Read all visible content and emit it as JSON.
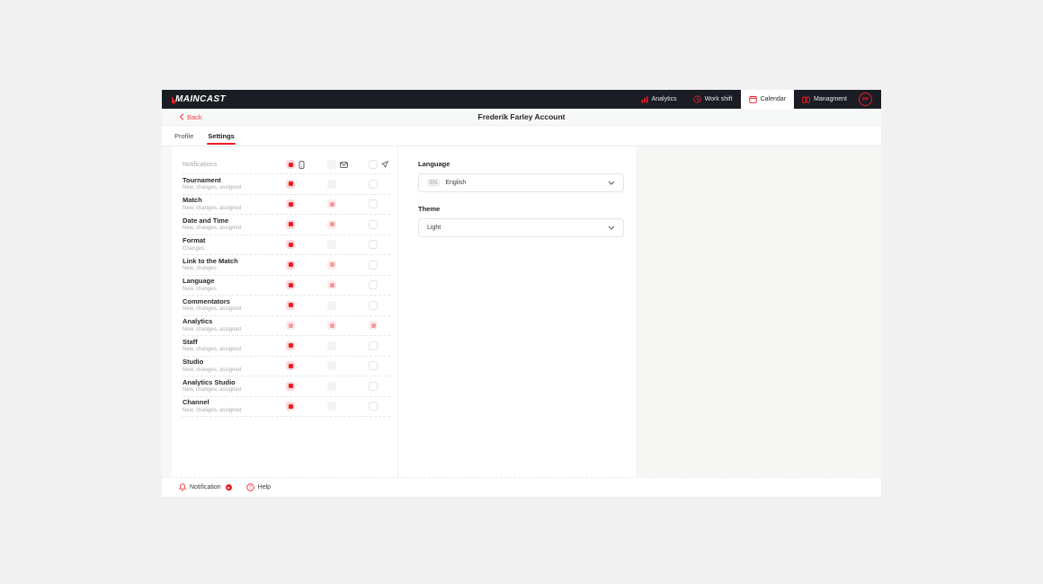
{
  "navbar": {
    "logo_text": "MAINCAST",
    "items": [
      {
        "label": "Analytics",
        "icon": "bar-chart-icon",
        "active": false
      },
      {
        "label": "Work shift",
        "icon": "clock-icon",
        "active": false
      },
      {
        "label": "Calendar",
        "icon": "calendar-icon",
        "active": true
      },
      {
        "label": "Managment",
        "icon": "management-icon",
        "active": false
      }
    ],
    "avatar_initials": "PP"
  },
  "subheader": {
    "back_label": "Back",
    "title": "Frederik Farley Account"
  },
  "tabs": [
    {
      "label": "Profile",
      "active": false
    },
    {
      "label": "Settings",
      "active": true
    }
  ],
  "notifications": {
    "section_label": "Notifications",
    "channels": [
      {
        "key": "mobile",
        "icon": "smartphone-icon",
        "state": "checked"
      },
      {
        "key": "email",
        "icon": "email-icon",
        "state": "disabled"
      },
      {
        "key": "telegram",
        "icon": "send-icon",
        "state": "unchecked"
      }
    ],
    "rows": [
      {
        "title": "Tournament",
        "subtitle": "New, changes, assigned",
        "states": [
          "checked",
          "disabled",
          "unchecked"
        ]
      },
      {
        "title": "Match",
        "subtitle": "New, changes, assigned",
        "states": [
          "checked",
          "dim",
          "unchecked"
        ]
      },
      {
        "title": "Date and Time",
        "subtitle": "New, changes, assigned",
        "states": [
          "checked",
          "dim",
          "unchecked"
        ]
      },
      {
        "title": "Format",
        "subtitle": "Changes",
        "states": [
          "checked",
          "disabled",
          "unchecked"
        ]
      },
      {
        "title": "Link to the Match",
        "subtitle": "New, changes",
        "states": [
          "checked",
          "dim",
          "unchecked"
        ]
      },
      {
        "title": "Language",
        "subtitle": "New, changes",
        "states": [
          "checked",
          "dim",
          "unchecked"
        ]
      },
      {
        "title": "Commentators",
        "subtitle": "New, changes, assigned",
        "states": [
          "checked",
          "disabled",
          "unchecked"
        ]
      },
      {
        "title": "Analytics",
        "subtitle": "New, changes, assigned",
        "states": [
          "dim",
          "dim",
          "dim"
        ]
      },
      {
        "title": "Staff",
        "subtitle": "New, changes, assigned",
        "states": [
          "checked",
          "disabled",
          "unchecked"
        ]
      },
      {
        "title": "Studio",
        "subtitle": "New, changes, assigned",
        "states": [
          "checked",
          "disabled",
          "unchecked"
        ]
      },
      {
        "title": "Analytics Studio",
        "subtitle": "New, changes, assigned",
        "states": [
          "checked",
          "disabled",
          "unchecked"
        ]
      },
      {
        "title": "Channel",
        "subtitle": "New, changes, assigned",
        "states": [
          "checked",
          "disabled",
          "unchecked"
        ]
      }
    ]
  },
  "preferences": {
    "language_label": "Language",
    "language_badge": "EN",
    "language_value": "English",
    "theme_label": "Theme",
    "theme_value": "Light"
  },
  "footer": {
    "notification_label": "Notification",
    "help_label": "Help"
  },
  "colors": {
    "accent": "#ed1c24",
    "navbar_bg": "#1a1d24"
  }
}
